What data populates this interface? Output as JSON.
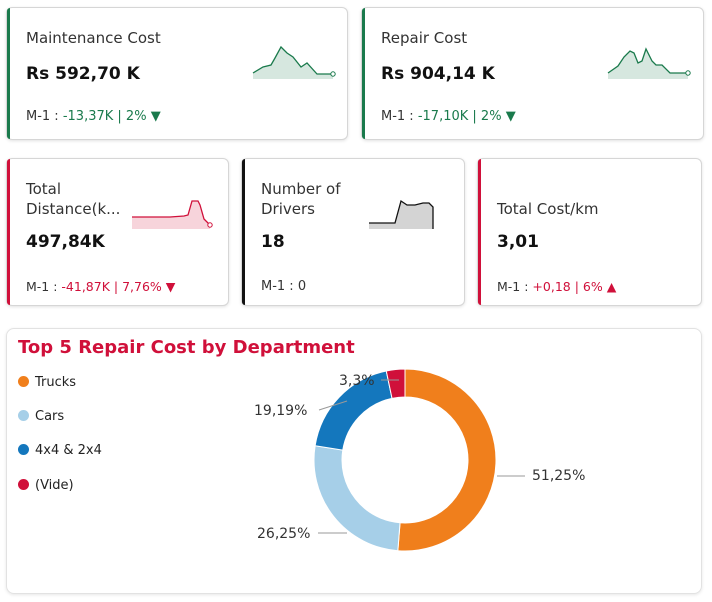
{
  "colors": {
    "green": "#1a7a4c",
    "red": "#d0103a",
    "black": "#111111",
    "trucks": "#f07f1c",
    "cars": "#a6cfe8",
    "fourx4": "#1477bd",
    "vide": "#d0103a"
  },
  "cards": {
    "maintenance": {
      "label": "Maintenance Cost",
      "value": "Rs 592,70 K",
      "delta_prefix": "M-1 :",
      "delta": "-13,37K | 2%",
      "arrow": "▼"
    },
    "repair": {
      "label": "Repair Cost",
      "value": "Rs 904,14 K",
      "delta_prefix": "M-1 :",
      "delta": "-17,10K | 2%",
      "arrow": "▼"
    },
    "distance": {
      "label_line1": "Total",
      "label_line2": "Distance(k...",
      "value": "497,84K",
      "delta_prefix": "M-1 :",
      "delta": "-41,87K | 7,76%",
      "arrow": "▼"
    },
    "drivers": {
      "label_line1": "Number of",
      "label_line2": "Drivers",
      "value": "18",
      "delta_prefix": "M-1 : 0"
    },
    "costkm": {
      "label": "Total Cost/km",
      "value": "3,01",
      "delta_prefix": "M-1 :",
      "delta": "+0,18 | 6%",
      "arrow": "▲"
    }
  },
  "chart_data": {
    "type": "pie",
    "style": "donut",
    "title": "Top 5 Repair Cost by Department",
    "categories": [
      "Trucks",
      "Cars",
      "4x4 & 2x4",
      "(Vide)"
    ],
    "values": [
      51.25,
      26.25,
      19.19,
      3.3
    ],
    "data_labels": [
      "51,25%",
      "26,25%",
      "19,19%",
      "3,3%"
    ],
    "legend_position": "left"
  }
}
